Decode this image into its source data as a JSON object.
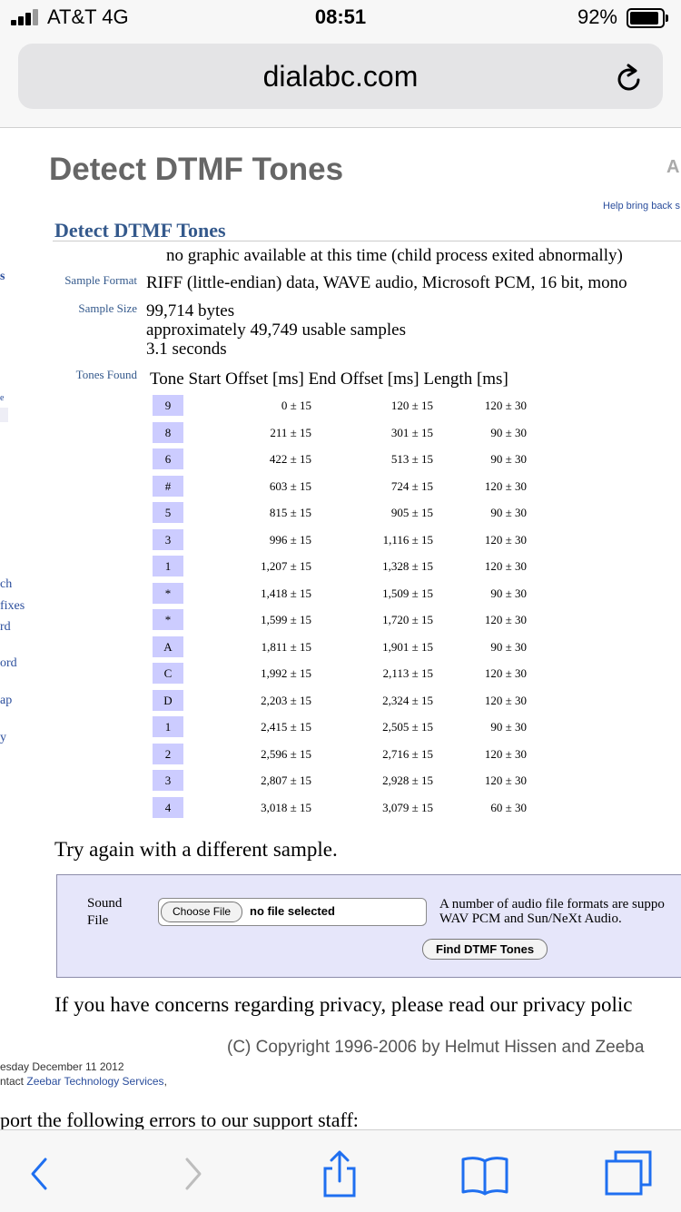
{
  "status_bar": {
    "carrier": "AT&T  4G",
    "time": "08:51",
    "battery": "92%",
    "battery_level": 0.92
  },
  "browser": {
    "url": "dialabc.com",
    "reload_icon": "reload-icon",
    "toolbar_icons": [
      "back-icon",
      "forward-icon",
      "share-icon",
      "bookmarks-icon",
      "tabs-icon"
    ]
  },
  "page": {
    "site_title": "Detect DTMF Tones",
    "corner_letter": "A",
    "help_link": "Help bring back s",
    "section_title": "Detect DTMF Tones",
    "no_graphic": "no graphic available at this time (child process exited abnormally)",
    "sample_format_label": "Sample Format",
    "sample_format_value": "RIFF (little-endian) data, WAVE audio, Microsoft PCM, 16 bit, mono",
    "sample_size_label": "Sample Size",
    "sample_size_lines": [
      "99,714 bytes",
      "approximately 49,749 usable samples",
      "3.1 seconds"
    ],
    "tones_found_label": "Tones Found",
    "tones_header": "Tone Start Offset [ms] End Offset [ms] Length [ms]",
    "tones": [
      {
        "tone": "9",
        "start": "0 ± 15",
        "end": "120 ± 15",
        "length": "120 ± 30"
      },
      {
        "tone": "8",
        "start": "211 ± 15",
        "end": "301 ± 15",
        "length": "90 ± 30"
      },
      {
        "tone": "6",
        "start": "422 ± 15",
        "end": "513 ± 15",
        "length": "90 ± 30"
      },
      {
        "tone": "#",
        "start": "603 ± 15",
        "end": "724 ± 15",
        "length": "120 ± 30"
      },
      {
        "tone": "5",
        "start": "815 ± 15",
        "end": "905 ± 15",
        "length": "90 ± 30"
      },
      {
        "tone": "3",
        "start": "996 ± 15",
        "end": "1,116 ± 15",
        "length": "120 ± 30"
      },
      {
        "tone": "1",
        "start": "1,207 ± 15",
        "end": "1,328 ± 15",
        "length": "120 ± 30"
      },
      {
        "tone": "*",
        "start": "1,418 ± 15",
        "end": "1,509 ± 15",
        "length": "90 ± 30"
      },
      {
        "tone": "*",
        "start": "1,599 ± 15",
        "end": "1,720 ± 15",
        "length": "120 ± 30"
      },
      {
        "tone": "A",
        "start": "1,811 ± 15",
        "end": "1,901 ± 15",
        "length": "90 ± 30"
      },
      {
        "tone": "C",
        "start": "1,992 ± 15",
        "end": "2,113 ± 15",
        "length": "120 ± 30"
      },
      {
        "tone": "D",
        "start": "2,203 ± 15",
        "end": "2,324 ± 15",
        "length": "120 ± 30"
      },
      {
        "tone": "1",
        "start": "2,415 ± 15",
        "end": "2,505 ± 15",
        "length": "90 ± 30"
      },
      {
        "tone": "2",
        "start": "2,596 ± 15",
        "end": "2,716 ± 15",
        "length": "120 ± 30"
      },
      {
        "tone": "3",
        "start": "2,807 ± 15",
        "end": "2,928 ± 15",
        "length": "120 ± 30"
      },
      {
        "tone": "4",
        "start": "3,018 ± 15",
        "end": "3,079 ± 15",
        "length": "60 ± 30"
      }
    ],
    "side_nav_fragments": [
      "s",
      "e",
      "ch",
      "fixes",
      "rd",
      "ord",
      "ap",
      "y"
    ],
    "try_again": "Try again with a different sample.",
    "upload": {
      "sound_label_1": "Sound",
      "sound_label_2": "File",
      "choose_file": "Choose File",
      "file_status": "no file selected",
      "formats_line_1": "A number of audio file formats are suppo",
      "formats_line_2": "WAV PCM and Sun/NeXt Audio.",
      "find_button": "Find DTMF Tones"
    },
    "privacy": "If you have concerns regarding privacy, please read our privacy polic",
    "copyright": "(C) Copyright 1996-2006 by Helmut Hissen and Zeeba",
    "modified": "esday December 11 2012",
    "contact_prefix": "ntact ",
    "contact_link": "Zeebar Technology Services",
    "contact_suffix": ",",
    "report": "port the following errors to our support staff:"
  }
}
